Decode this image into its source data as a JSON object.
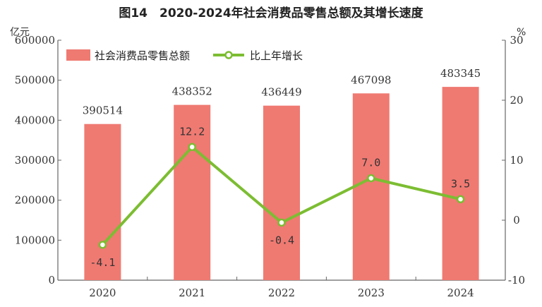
{
  "chart_data": {
    "type": "bar",
    "title": "图14　2020-2024年社会消费品零售总额及其增长速度",
    "y_unit_left": "亿元",
    "y_unit_right": "%",
    "categories": [
      "2020",
      "2021",
      "2022",
      "2023",
      "2024"
    ],
    "y_ticks_left": [
      "0",
      "100000",
      "200000",
      "300000",
      "400000",
      "500000",
      "600000"
    ],
    "y_ticks_right": [
      "-10",
      "0",
      "10",
      "20",
      "30"
    ],
    "ylim_left": [
      0,
      600000
    ],
    "ylim_right": [
      -10,
      30
    ],
    "series": [
      {
        "name": "社会消费品零售总额",
        "type": "bar",
        "axis": "left",
        "values": [
          390514,
          438352,
          436449,
          467098,
          483345
        ],
        "labels": [
          "390514",
          "438352",
          "436449",
          "467098",
          "483345"
        ]
      },
      {
        "name": "比上年增长",
        "type": "line",
        "axis": "right",
        "values": [
          -4.1,
          12.2,
          -0.4,
          7.0,
          3.5
        ],
        "labels": [
          "-4.1",
          "12.2",
          "-0.4",
          "7.0",
          "3.5"
        ]
      }
    ],
    "legend_position": "top-left",
    "grid": false,
    "colors": {
      "bar": "#ef7a72",
      "line": "#7cbd32",
      "axis": "#666666"
    }
  }
}
